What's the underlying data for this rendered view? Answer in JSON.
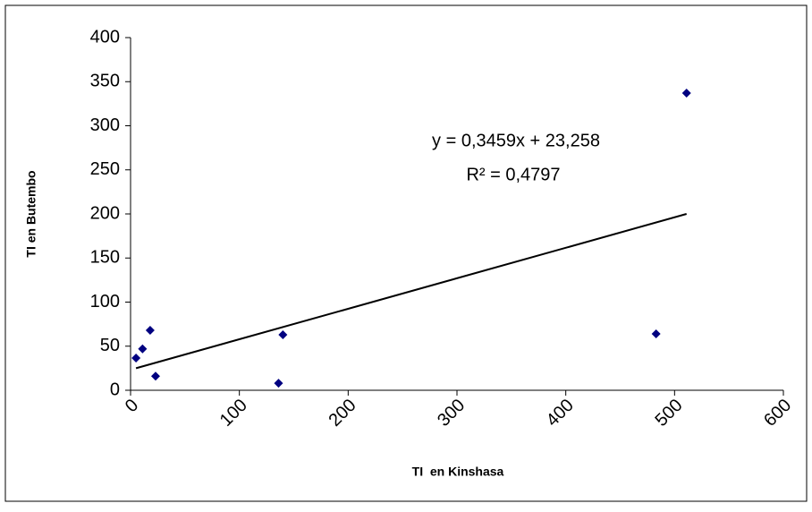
{
  "chart_data": {
    "type": "scatter",
    "x_label": "TI  en Kinshasa",
    "y_label": "TI en Butembo",
    "series": [
      {
        "color": "#000080",
        "x": [
          5,
          11,
          18,
          23,
          136,
          140,
          483,
          511
        ],
        "values": [
          36.5,
          47,
          68,
          16,
          8,
          63,
          64,
          337
        ]
      }
    ],
    "trendline": {
      "slope": 0.3459,
      "intercept": 23.258,
      "color": "#000000",
      "equation": "y = 0,3459x + 23,258",
      "r_squared": "R² = 0,4797"
    },
    "xlim": [
      0,
      600
    ],
    "xticks": [
      0,
      100,
      200,
      300,
      400,
      500,
      600
    ],
    "ylim": [
      0,
      400
    ],
    "yticks": [
      0,
      50,
      100,
      150,
      200,
      250,
      300,
      350,
      400
    ],
    "grid": false
  }
}
